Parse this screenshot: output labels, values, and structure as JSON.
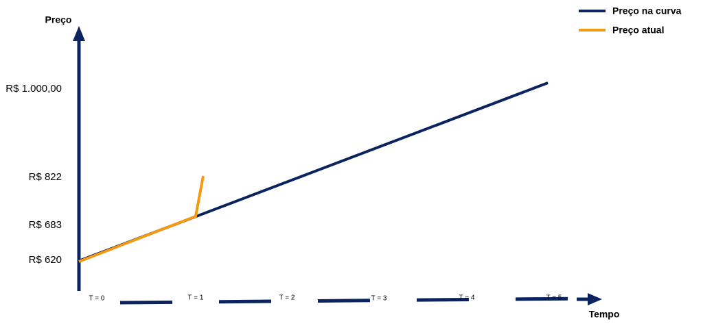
{
  "axes": {
    "y_label": "Preço",
    "x_label": "Tempo"
  },
  "price_labels": [
    "R$ 1.000,00",
    "R$ 822",
    "R$ 683",
    "R$ 620"
  ],
  "time_labels": [
    "T = 0",
    "T = 1",
    "T = 2",
    "T = 3",
    "T = 4",
    "T = 5"
  ],
  "legend": [
    {
      "label": "Preço na curva",
      "color": "#0b2460"
    },
    {
      "label": "Preço atual",
      "color": "#f39a12"
    }
  ]
}
